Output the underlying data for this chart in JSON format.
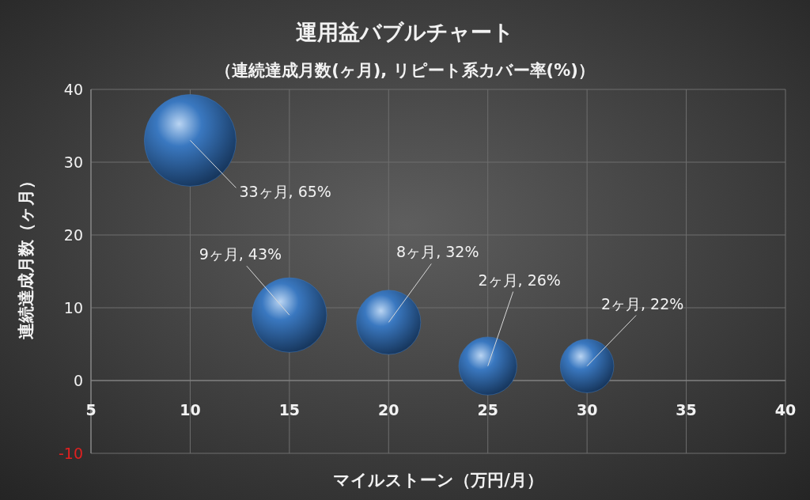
{
  "chart_data": {
    "type": "bubble",
    "title": "運用益バブルチャート",
    "subtitle": "（連続達成月数(ヶ月), リピート系カバー率(%)）",
    "xlabel": "マイルストーン（万円/月）",
    "ylabel": "連続達成月数（ヶ月）",
    "x": [
      10,
      15,
      20,
      25,
      30
    ],
    "values": [
      33,
      9,
      8,
      2,
      2
    ],
    "sizes": [
      1,
      0.66,
      0.49,
      0.4,
      0.34
    ],
    "value_labels": [
      "33ヶ月, 65%",
      "9ヶ月, 43%",
      "8ヶ月, 32%",
      "2ヶ月, 26%",
      "2ヶ月, 22%"
    ],
    "color": "#3a78c0",
    "xlim": [
      5,
      40
    ],
    "ylim": [
      -10,
      40
    ],
    "xticks": [
      5,
      10,
      15,
      20,
      25,
      30,
      35,
      40
    ],
    "yticks": [
      -10,
      0,
      10,
      20,
      30,
      40
    ],
    "grid": true
  }
}
